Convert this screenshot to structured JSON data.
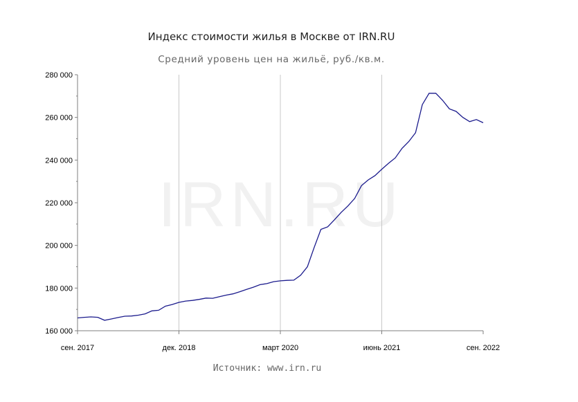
{
  "colors": {
    "line": "#1a1a8c",
    "grid": "#c8c8c8",
    "axis": "#7f7f7f"
  },
  "chart_data": {
    "type": "line",
    "title": "Индекс стоимости жилья в Москве от IRN.RU",
    "subtitle": "Средний уровень цен на жильё, руб./кв.м.",
    "source": "Источник: www.irn.ru",
    "watermark": "IRN.RU",
    "xlabel": "",
    "ylabel": "",
    "ylim": [
      160000,
      280000
    ],
    "y_ticks": [
      160000,
      180000,
      200000,
      220000,
      240000,
      260000,
      280000
    ],
    "y_tick_labels": [
      "160 000",
      "180 000",
      "200 000",
      "220 000",
      "240 000",
      "260 000",
      "280 000"
    ],
    "x_tick_labels": [
      "сен. 2017",
      "дек. 2018",
      "март 2020",
      "июнь 2021",
      "сен. 2022"
    ],
    "grid": "vertical at x ticks",
    "legend": "none",
    "series": [
      {
        "x": [
          "2017-09",
          "2017-10",
          "2017-11",
          "2017-12",
          "2018-01",
          "2018-02",
          "2018-03",
          "2018-04",
          "2018-05",
          "2018-06",
          "2018-07",
          "2018-08",
          "2018-09",
          "2018-10",
          "2018-11",
          "2018-12",
          "2019-01",
          "2019-02",
          "2019-03",
          "2019-04",
          "2019-05",
          "2019-06",
          "2019-07",
          "2019-08",
          "2019-09",
          "2019-10",
          "2019-11",
          "2019-12",
          "2020-01",
          "2020-02",
          "2020-03",
          "2020-04",
          "2020-05",
          "2020-06",
          "2020-07",
          "2020-08",
          "2020-09",
          "2020-10",
          "2020-11",
          "2020-12",
          "2021-01",
          "2021-02",
          "2021-03",
          "2021-04",
          "2021-05",
          "2021-06",
          "2021-07",
          "2021-08",
          "2021-09",
          "2021-10",
          "2021-11",
          "2021-12",
          "2022-01",
          "2022-02",
          "2022-03",
          "2022-04",
          "2022-05",
          "2022-06",
          "2022-07",
          "2022-08",
          "2022-09"
        ],
        "values": [
          166000,
          166300,
          166500,
          166300,
          164900,
          165500,
          166200,
          166800,
          166900,
          167300,
          167900,
          169300,
          169600,
          171500,
          172300,
          173300,
          173900,
          174200,
          174700,
          175300,
          175200,
          176000,
          176700,
          177300,
          178300,
          179400,
          180400,
          181600,
          182100,
          183000,
          183400,
          183600,
          183700,
          186000,
          190000,
          199000,
          207500,
          208700,
          212000,
          215500,
          218500,
          222000,
          228000,
          230700,
          232700,
          235700,
          238500,
          241000,
          245500,
          248700,
          252800,
          266000,
          271300,
          271300,
          268000,
          264000,
          262800,
          260000,
          258000,
          259000,
          257500
        ]
      }
    ]
  }
}
